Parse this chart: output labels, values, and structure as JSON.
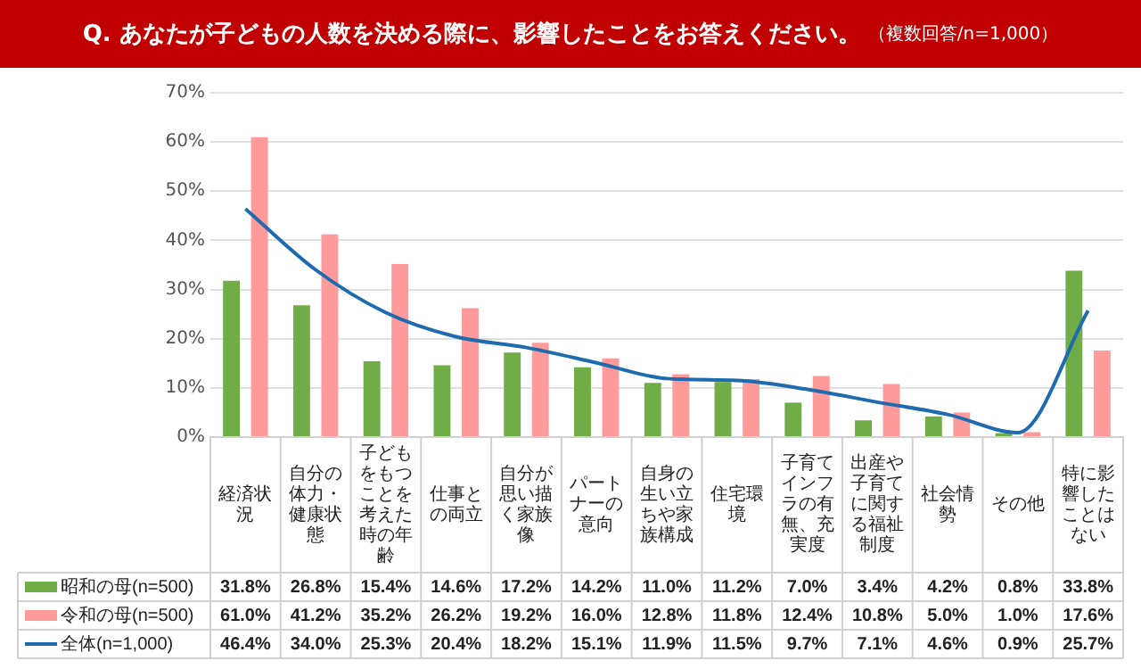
{
  "chart_data": {
    "type": "bar",
    "title": "Q. あなたが子どもの人数を決める際に、影響したことをお答えください。",
    "subtitle": "（複数回答/n=1,000）",
    "categories": [
      "経済状況",
      "自分の体力・健康状態",
      "子どもをもつことを考えた時の年齢",
      "仕事との両立",
      "自分が思い描く家族像",
      "パートナーの意向",
      "自身の生い立ちや家族構成",
      "住宅環境",
      "子育てインフラの有無、充実度",
      "出産や子育てに関する福祉制度",
      "社会情勢",
      "その他",
      "特に影響したことはない"
    ],
    "series": [
      {
        "name": "昭和の母(n=500)",
        "color": "#70ad47",
        "values": [
          31.8,
          26.8,
          15.4,
          14.6,
          17.2,
          14.2,
          11.0,
          11.2,
          7.0,
          3.4,
          4.2,
          0.8,
          33.8
        ],
        "value_labels": [
          "31.8%",
          "26.8%",
          "15.4%",
          "14.6%",
          "17.2%",
          "14.2%",
          "11.0%",
          "11.2%",
          "7.0%",
          "3.4%",
          "4.2%",
          "0.8%",
          "33.8%"
        ]
      },
      {
        "name": "令和の母(n=500)",
        "color": "#ff9b9b",
        "values": [
          61.0,
          41.2,
          35.2,
          26.2,
          19.2,
          16.0,
          12.8,
          11.8,
          12.4,
          10.8,
          5.0,
          1.0,
          17.6
        ],
        "value_labels": [
          "61.0%",
          "41.2%",
          "35.2%",
          "26.2%",
          "19.2%",
          "16.0%",
          "12.8%",
          "11.8%",
          "12.4%",
          "10.8%",
          "5.0%",
          "1.0%",
          "17.6%"
        ]
      },
      {
        "name": "全体(n=1,000)",
        "type": "line",
        "color": "#1f6bb0",
        "values": [
          46.4,
          34.0,
          25.3,
          20.4,
          18.2,
          15.1,
          11.9,
          11.5,
          9.7,
          7.1,
          4.6,
          0.9,
          25.7
        ],
        "value_labels": [
          "46.4%",
          "34.0%",
          "25.3%",
          "20.4%",
          "18.2%",
          "15.1%",
          "11.9%",
          "11.5%",
          "9.7%",
          "7.1%",
          "4.6%",
          "0.9%",
          "25.7%"
        ]
      }
    ],
    "ylim": [
      0,
      70
    ],
    "yticks": [
      {
        "value": 0,
        "label": "0%"
      },
      {
        "value": 10,
        "label": "10%"
      },
      {
        "value": 20,
        "label": "20%"
      },
      {
        "value": 30,
        "label": "30%"
      },
      {
        "value": 40,
        "label": "40%"
      },
      {
        "value": 50,
        "label": "50%"
      },
      {
        "value": 60,
        "label": "60%"
      },
      {
        "value": 70,
        "label": "70%"
      }
    ],
    "grid": "y",
    "legend": "bottom",
    "marker": "none",
    "line_style": "solid"
  }
}
